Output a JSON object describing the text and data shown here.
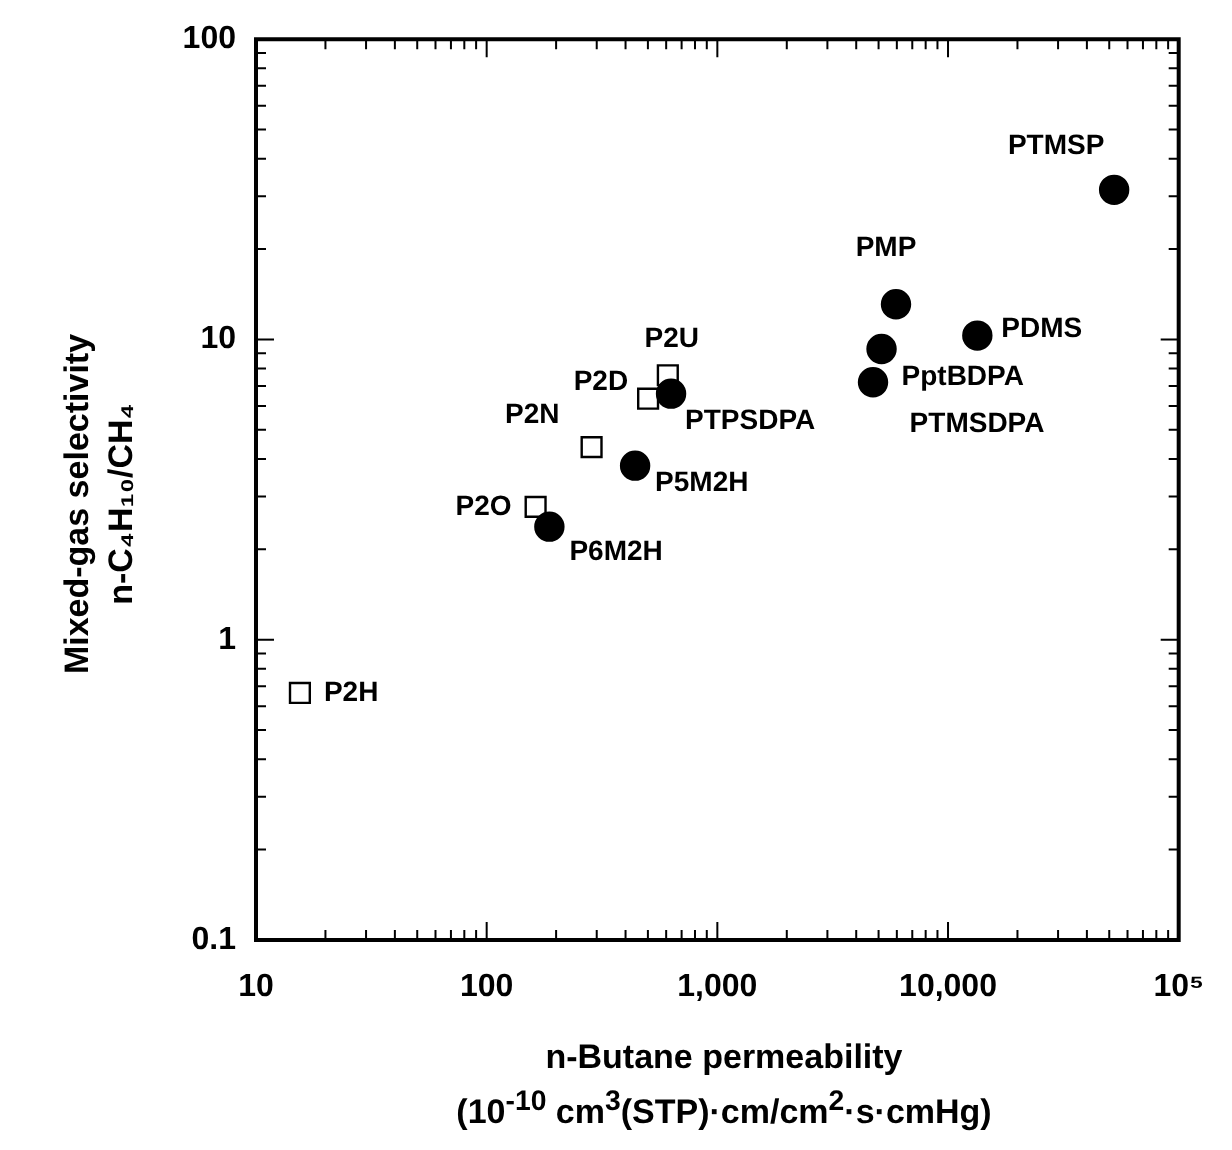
{
  "chart_data": {
    "type": "scatter",
    "xlabel": "n-Butane permeability\n(10$^{-10}$ cm$^{3}$(STP)·cm/cm$^{2}$·s·cmHg)",
    "ylabel": "Mixed-gas selectivity\nn-C₄H₁₀/CH₄",
    "log": "xy",
    "grid": false,
    "legend": false,
    "xlim": [
      10,
      100000
    ],
    "ylim": [
      0.1,
      100
    ],
    "xticks": [
      10,
      {
        "value": 20,
        "label": null
      },
      {
        "value": 30,
        "label": null
      },
      {
        "value": 40,
        "label": null
      },
      {
        "value": 50,
        "label": null
      },
      {
        "value": 60,
        "label": null
      },
      {
        "value": 70,
        "label": null
      },
      {
        "value": 80,
        "label": null
      },
      {
        "value": 90,
        "label": null
      },
      100,
      {
        "value": 200,
        "label": null
      },
      {
        "value": 300,
        "label": null
      },
      {
        "value": 400,
        "label": null
      },
      {
        "value": 500,
        "label": null
      },
      {
        "value": 600,
        "label": null
      },
      {
        "value": 700,
        "label": null
      },
      {
        "value": 800,
        "label": null
      },
      {
        "value": 900,
        "label": null
      },
      {
        "value": 1000,
        "label": "1,000"
      },
      {
        "value": 2000,
        "label": null
      },
      {
        "value": 3000,
        "label": null
      },
      {
        "value": 4000,
        "label": null
      },
      {
        "value": 5000,
        "label": null
      },
      {
        "value": 6000,
        "label": null
      },
      {
        "value": 7000,
        "label": null
      },
      {
        "value": 8000,
        "label": null
      },
      {
        "value": 9000,
        "label": null
      },
      {
        "value": 10000,
        "label": "10,000"
      },
      {
        "value": 20000,
        "label": null
      },
      {
        "value": 30000,
        "label": null
      },
      {
        "value": 40000,
        "label": null
      },
      {
        "value": 50000,
        "label": null
      },
      {
        "value": 60000,
        "label": null
      },
      {
        "value": 70000,
        "label": null
      },
      {
        "value": 80000,
        "label": null
      },
      {
        "value": 90000,
        "label": null
      },
      {
        "value": 100000,
        "label": "10⁵"
      }
    ],
    "yticks": [
      0.1,
      {
        "value": 0.2,
        "label": null
      },
      {
        "value": 0.3,
        "label": null
      },
      {
        "value": 0.4,
        "label": null
      },
      {
        "value": 0.5,
        "label": null
      },
      {
        "value": 0.6,
        "label": null
      },
      {
        "value": 0.7,
        "label": null
      },
      {
        "value": 0.8,
        "label": null
      },
      {
        "value": 0.9,
        "label": null
      },
      1,
      {
        "value": 2,
        "label": null
      },
      {
        "value": 3,
        "label": null
      },
      {
        "value": 4,
        "label": null
      },
      {
        "value": 5,
        "label": null
      },
      {
        "value": 6,
        "label": null
      },
      {
        "value": 7,
        "label": null
      },
      {
        "value": 8,
        "label": null
      },
      {
        "value": 9,
        "label": null
      },
      10,
      {
        "value": 20,
        "label": null
      },
      {
        "value": 30,
        "label": null
      },
      {
        "value": 40,
        "label": null
      },
      {
        "value": 50,
        "label": null
      },
      {
        "value": 60,
        "label": null
      },
      {
        "value": 70,
        "label": null
      },
      {
        "value": 80,
        "label": null
      },
      {
        "value": 90,
        "label": null
      },
      100
    ],
    "series": [
      {
        "color": "#000000",
        "marker": "square",
        "x": [
          15.5,
          163,
          285,
          501,
          610
        ],
        "values": [
          0.665,
          2.77,
          4.38,
          6.35,
          7.6
        ]
      },
      {
        "color": "#000000",
        "marker": "circle",
        "x": [
          187,
          440,
          630,
          4730,
          5150,
          5950,
          13400,
          52500
        ],
        "values": [
          2.38,
          3.8,
          6.6,
          7.2,
          9.3,
          13.1,
          10.3,
          31.5
        ]
      }
    ],
    "annotations": [
      {
        "text": "P2H",
        "x": 15.5,
        "y": 0.665
      },
      {
        "text": "P2O",
        "x": 163,
        "y": 2.77
      },
      {
        "text": "P2N",
        "x": 285,
        "y": 4.38
      },
      {
        "text": "P2D",
        "x": 501,
        "y": 6.35
      },
      {
        "text": "P2U",
        "x": 610,
        "y": 7.6
      },
      {
        "text": "P6M2H",
        "x": 187,
        "y": 2.38
      },
      {
        "text": "P5M2H",
        "x": 440,
        "y": 3.8
      },
      {
        "text": "PTPSDPA",
        "x": 630,
        "y": 6.6
      },
      {
        "text": "PTMSDPA",
        "x": 4730,
        "y": 7.2
      },
      {
        "text": "PptBDPA",
        "x": 5150,
        "y": 9.3
      },
      {
        "text": "PMP",
        "x": 5950,
        "y": 13.1
      },
      {
        "text": "PDMS",
        "x": 13400,
        "y": 10.3
      },
      {
        "text": "PTMSP",
        "x": 52500,
        "y": 31.5
      }
    ]
  }
}
